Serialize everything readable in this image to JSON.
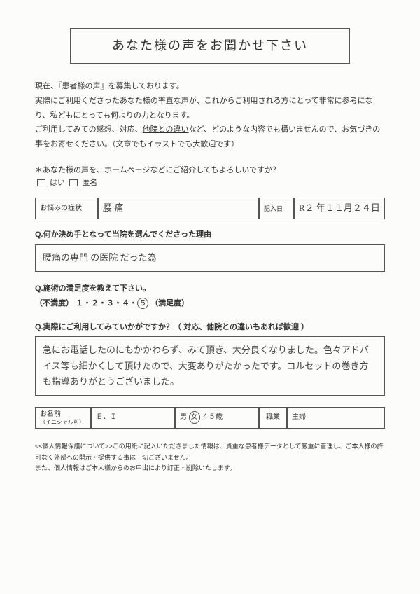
{
  "title": "あなた様の声をお聞かせ下さい",
  "intro": {
    "line1": "現在、『患者様の声』を募集しております。",
    "line2": "実際にご利用くださったあなた様の率直な声が、これからご利用される方にとって非常に参考になり、私どもにとっても何よりの力となります。",
    "line3a": "ご利用してみての感想、対応、",
    "line3u": "他院との違い",
    "line3b": "など、どのような内容でも構いませんので、お気づきの事をお寄せください。（文章でもイラストでも大歓迎です）"
  },
  "consent": {
    "q": "＊あなた様の声を、ホームページなどにご紹介してもよろしいですか？",
    "opt1": "はい",
    "opt2": "匿名"
  },
  "symptom": {
    "label": "お悩みの症状",
    "value": "腰 痛",
    "date_label": "記入日",
    "date_value": "R２ 年１１月２４日"
  },
  "q1": {
    "label": "Q.何か決め手となって当院を選んでくださった理由",
    "answer": "腰痛の専門 の医院 だった為"
  },
  "q2": {
    "label": "Q.施術の満足度を教えて下さい。",
    "left": "（不満度）",
    "scale": "１・２・３・４・",
    "circled": "５",
    "right": "（満足度）"
  },
  "q3": {
    "label": "Q.実際にご利用してみていかがですか？（ 対応、他院との違いもあれば歓迎 ）",
    "answer": "急にお電話したのにもかかわらず、みて頂き、大分良くなりました。色々アドバイス等も細かくして頂けたので、大変ありがたかったです。コルセットの巻き方も指導ありがとうございました。"
  },
  "name": {
    "label1": "お名前",
    "label2": "（イニシャル可）",
    "value": "Ｅ．Ｉ",
    "gender_m": "男",
    "gender_f": "女",
    "age": "４５歳",
    "occ_label": "職業",
    "occ_value": "主婦"
  },
  "privacy": {
    "l1": "<<個人情報保護について>>この用紙に記入いただきました情報は、貴重な患者様データとして厳重に管理し、ご本人様の許可なく外部への開示・提供する事は一切ございません。",
    "l2": "また、個人情報はご本人様からのお申出により訂正・削除いたします。"
  }
}
